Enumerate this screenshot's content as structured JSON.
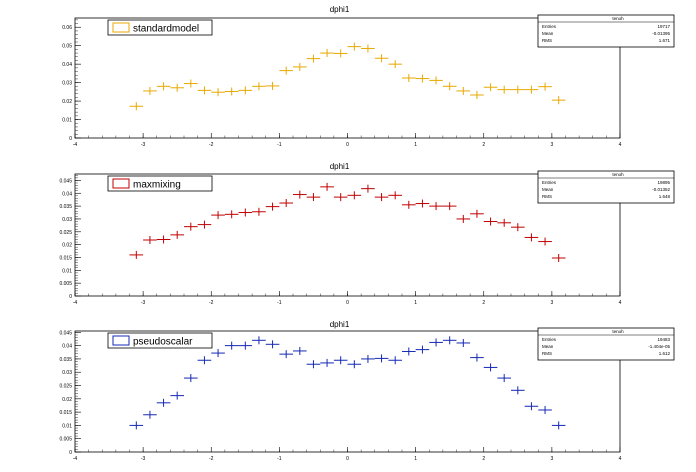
{
  "chart_data": [
    {
      "type": "scatter",
      "title": "dphi1",
      "legend": {
        "label": "standardmodel",
        "color": "#e8a800",
        "placement": "top-left"
      },
      "stats": {
        "name": "tenoh",
        "rows": [
          [
            "Entries",
            "19717"
          ],
          [
            "Mean",
            "-0.01395"
          ],
          [
            "RMS",
            "1.671"
          ]
        ],
        "placement": "top-right"
      },
      "xlim": [
        -4,
        4
      ],
      "ylim": [
        0,
        0.065
      ],
      "xticks": [
        -4,
        -3,
        -2,
        -1,
        0,
        1,
        2,
        3,
        4
      ],
      "yticks": [
        0,
        0.01,
        0.02,
        0.03,
        0.04,
        0.05,
        0.06
      ],
      "ytick_labels": [
        "0",
        "0.01",
        "0.02",
        "0.03",
        "0.04",
        "0.05",
        "0.06"
      ],
      "bin_width": 0.2,
      "x": [
        -3.1,
        -2.9,
        -2.7,
        -2.5,
        -2.3,
        -2.1,
        -1.9,
        -1.7,
        -1.5,
        -1.3,
        -1.1,
        -0.9,
        -0.7,
        -0.5,
        -0.3,
        -0.1,
        0.1,
        0.3,
        0.5,
        0.7,
        0.9,
        1.1,
        1.3,
        1.5,
        1.7,
        1.9,
        2.1,
        2.3,
        2.5,
        2.7,
        2.9,
        3.1
      ],
      "values": [
        0.0172,
        0.0255,
        0.028,
        0.0272,
        0.0295,
        0.0258,
        0.0248,
        0.0252,
        0.0258,
        0.028,
        0.0282,
        0.0365,
        0.0385,
        0.043,
        0.046,
        0.0458,
        0.0495,
        0.0485,
        0.0432,
        0.04,
        0.0325,
        0.0322,
        0.0312,
        0.028,
        0.0255,
        0.0233,
        0.0275,
        0.0262,
        0.0262,
        0.0262,
        0.0278,
        0.0205
      ]
    },
    {
      "type": "scatter",
      "title": "dphi1",
      "legend": {
        "label": "maxmixing",
        "color": "#c00000",
        "placement": "top-left"
      },
      "stats": {
        "name": "tenoh",
        "rows": [
          [
            "Entries",
            "19895"
          ],
          [
            "Mean",
            "-0.01352"
          ],
          [
            "RMS",
            "1.648"
          ]
        ],
        "placement": "top-right"
      },
      "xlim": [
        -4,
        4
      ],
      "ylim": [
        0,
        0.0475
      ],
      "xticks": [
        -4,
        -3,
        -2,
        -1,
        0,
        1,
        2,
        3,
        4
      ],
      "yticks": [
        0,
        0.005,
        0.01,
        0.015,
        0.02,
        0.025,
        0.03,
        0.035,
        0.04,
        0.045
      ],
      "ytick_labels": [
        "0",
        "0.005",
        "0.01",
        "0.015",
        "0.02",
        "0.025",
        "0.03",
        "0.035",
        "0.04",
        "0.045"
      ],
      "bin_width": 0.2,
      "x": [
        -3.1,
        -2.9,
        -2.7,
        -2.5,
        -2.3,
        -2.1,
        -1.9,
        -1.7,
        -1.5,
        -1.3,
        -1.1,
        -0.9,
        -0.7,
        -0.5,
        -0.3,
        -0.1,
        0.1,
        0.3,
        0.5,
        0.7,
        0.9,
        1.1,
        1.3,
        1.5,
        1.7,
        1.9,
        2.1,
        2.3,
        2.5,
        2.7,
        2.9,
        3.1
      ],
      "values": [
        0.016,
        0.0218,
        0.022,
        0.0238,
        0.027,
        0.0278,
        0.0315,
        0.0318,
        0.0325,
        0.0328,
        0.0348,
        0.0362,
        0.0395,
        0.0385,
        0.0425,
        0.0385,
        0.0392,
        0.0418,
        0.0385,
        0.0392,
        0.0355,
        0.036,
        0.035,
        0.035,
        0.03,
        0.032,
        0.029,
        0.0285,
        0.0268,
        0.0228,
        0.0212,
        0.0148
      ]
    },
    {
      "type": "scatter",
      "title": "dphi1",
      "legend": {
        "label": "pseudoscalar",
        "color": "#1428b4",
        "placement": "top-left"
      },
      "stats": {
        "name": "tenoh",
        "rows": [
          [
            "Entries",
            "19483"
          ],
          [
            "Mean",
            "-1.404e-05"
          ],
          [
            "RMS",
            "1.612"
          ]
        ],
        "placement": "top-right"
      },
      "xlim": [
        -4,
        4
      ],
      "ylim": [
        0,
        0.0455
      ],
      "xticks": [
        -4,
        -3,
        -2,
        -1,
        0,
        1,
        2,
        3,
        4
      ],
      "yticks": [
        0,
        0.005,
        0.01,
        0.015,
        0.02,
        0.025,
        0.03,
        0.035,
        0.04,
        0.045
      ],
      "ytick_labels": [
        "0",
        "0.005",
        "0.01",
        "0.015",
        "0.02",
        "0.025",
        "0.03",
        "0.035",
        "0.04",
        "0.045"
      ],
      "bin_width": 0.2,
      "x": [
        -3.1,
        -2.9,
        -2.7,
        -2.5,
        -2.3,
        -2.1,
        -1.9,
        -1.7,
        -1.5,
        -1.3,
        -1.1,
        -0.9,
        -0.7,
        -0.5,
        -0.3,
        -0.1,
        0.1,
        0.3,
        0.5,
        0.7,
        0.9,
        1.1,
        1.3,
        1.5,
        1.7,
        1.9,
        2.1,
        2.3,
        2.5,
        2.7,
        2.9,
        3.1
      ],
      "values": [
        0.01,
        0.014,
        0.0185,
        0.0212,
        0.0278,
        0.0345,
        0.0372,
        0.04,
        0.04,
        0.042,
        0.0405,
        0.0368,
        0.038,
        0.033,
        0.0335,
        0.0345,
        0.033,
        0.035,
        0.0352,
        0.0345,
        0.0378,
        0.0385,
        0.0412,
        0.042,
        0.041,
        0.0355,
        0.0318,
        0.0278,
        0.0232,
        0.0172,
        0.0158,
        0.01
      ]
    }
  ]
}
